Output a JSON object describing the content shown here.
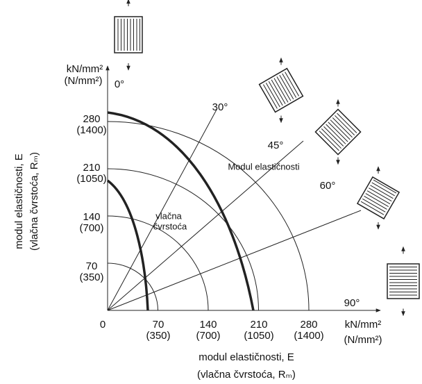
{
  "y_axis": {
    "unit": [
      "kN/mm²",
      "(N/mm²)"
    ],
    "ticks": [
      [
        "280",
        "(1400)"
      ],
      [
        "210",
        "(1050)"
      ],
      [
        "140",
        "(700)"
      ],
      [
        "70",
        "(350)"
      ]
    ],
    "title": [
      "modul elastičnosti, E",
      "(vlačna čvrstoća, Rₘ)"
    ]
  },
  "x_axis": {
    "ticks": [
      [
        "0"
      ],
      [
        "70",
        "(350)"
      ],
      [
        "140",
        "(700)"
      ],
      [
        "210",
        "(1050)"
      ],
      [
        "280",
        "(1400)"
      ]
    ],
    "unit": [
      "kN/mm²",
      "(N/mm²)"
    ],
    "title": [
      "modul elastičnosti, E",
      "(vlačna čvrstoća, Rₘ)"
    ]
  },
  "angles": [
    "0°",
    "30°",
    "45°",
    "60°",
    "90°"
  ],
  "curve_labels": {
    "modulus": "Modul elastičnosti",
    "strength": [
      "vlačna",
      "čvrstoća"
    ]
  }
}
